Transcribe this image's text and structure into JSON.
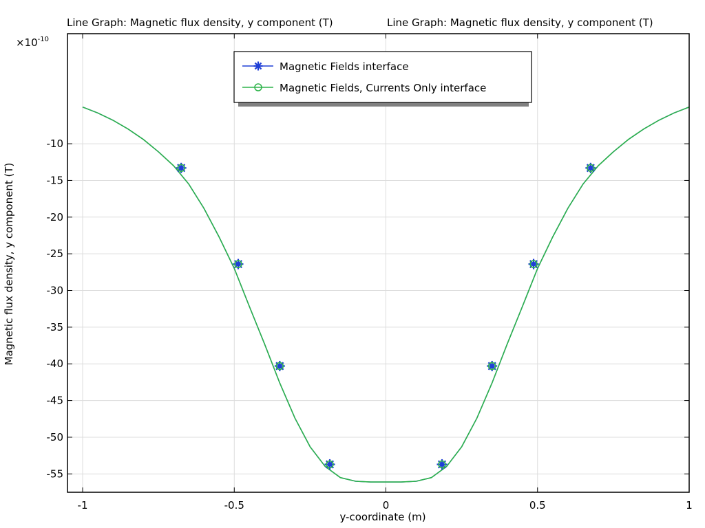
{
  "chart_data": {
    "type": "line",
    "title_left": "Line Graph: Magnetic flux density, y component (T)",
    "title_right": "Line Graph: Magnetic flux density, y component (T)",
    "xlabel": "y-coordinate (m)",
    "ylabel": "Magnetic flux density, y component (T)",
    "y_multiplier": "×10",
    "y_multiplier_exp": "-10",
    "xlim": [
      -1.05,
      1.0
    ],
    "ylim": [
      -57.5,
      5.0
    ],
    "xticks": [
      -1,
      -0.5,
      0,
      0.5,
      1
    ],
    "xtick_labels": [
      "-1",
      "-0.5",
      "0",
      "0.5",
      "1"
    ],
    "yticks": [
      -10,
      -15,
      -20,
      -25,
      -30,
      -35,
      -40,
      -45,
      -50,
      -55
    ],
    "ytick_labels": [
      "-10",
      "-15",
      "-20",
      "-25",
      "-30",
      "-35",
      "-40",
      "-45",
      "-50",
      "-55"
    ],
    "grid": true,
    "legend_position": "top-center",
    "colors": {
      "blue": "#1f3fd6",
      "green": "#2db34a"
    },
    "curve": {
      "x": [
        -1.0,
        -0.95,
        -0.9,
        -0.85,
        -0.8,
        -0.75,
        -0.7,
        -0.65,
        -0.6,
        -0.55,
        -0.5,
        -0.45,
        -0.4,
        -0.35,
        -0.3,
        -0.25,
        -0.2,
        -0.15,
        -0.1,
        -0.05,
        0.0,
        0.05,
        0.1,
        0.15,
        0.2,
        0.25,
        0.3,
        0.35,
        0.4,
        0.45,
        0.5,
        0.55,
        0.6,
        0.65,
        0.7,
        0.75,
        0.8,
        0.85,
        0.9,
        0.95,
        1.0
      ],
      "y": [
        -5.0,
        -5.8,
        -6.8,
        -8.0,
        -9.4,
        -11.1,
        -13.0,
        -15.5,
        -18.8,
        -22.7,
        -27.0,
        -32.2,
        -37.3,
        -42.6,
        -47.4,
        -51.3,
        -54.0,
        -55.5,
        -56.0,
        -56.1,
        -56.1,
        -56.1,
        -56.0,
        -55.5,
        -54.0,
        -51.3,
        -47.4,
        -42.6,
        -37.3,
        -32.2,
        -27.0,
        -22.7,
        -18.8,
        -15.5,
        -13.0,
        -11.1,
        -9.4,
        -8.0,
        -6.8,
        -5.8,
        -5.0
      ]
    },
    "markers": {
      "x": [
        -0.675,
        -0.487,
        -0.35,
        -0.185,
        0.185,
        0.35,
        0.487,
        0.675
      ],
      "y": [
        -13.3,
        -26.4,
        -40.3,
        -53.7,
        -53.7,
        -40.3,
        -26.4,
        -13.3
      ]
    },
    "series": [
      {
        "name": "Magnetic Fields interface",
        "color": "#1f3fd6",
        "marker": "asterisk"
      },
      {
        "name": "Magnetic Fields, Currents Only interface",
        "color": "#2db34a",
        "marker": "circle"
      }
    ]
  }
}
